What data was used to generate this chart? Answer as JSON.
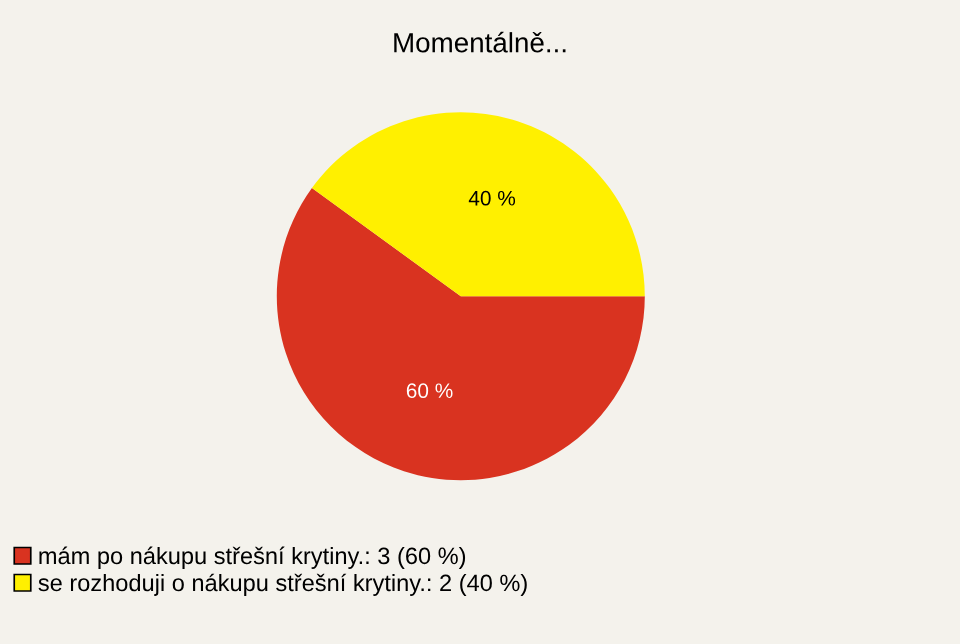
{
  "chart_data": {
    "type": "pie",
    "title": "Momentálně...",
    "categories": [
      "mám po nákupu střešní krytiny.: 3 (60 %)",
      "se rozhoduji o nákupu střešní krytiny.: 2 (40 %)"
    ],
    "values": [
      60,
      40
    ],
    "colors": [
      "#d93320",
      "#fff000"
    ],
    "value_labels": [
      "60 %",
      "40 %"
    ],
    "legend": "bottom"
  }
}
